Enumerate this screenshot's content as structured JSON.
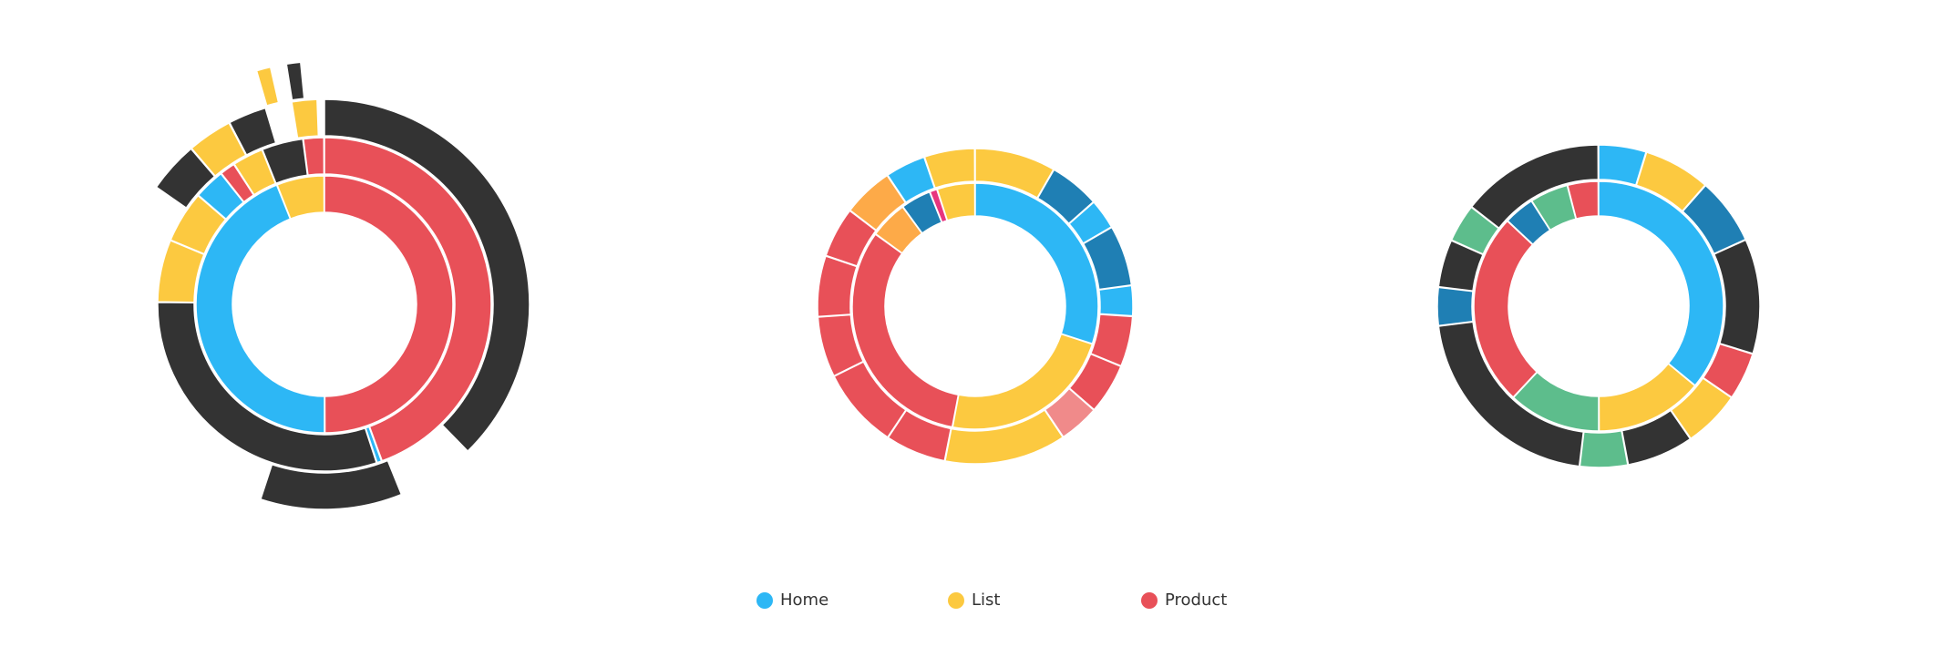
{
  "colors": {
    "Home": "#2db7f5",
    "Home2": "#1f7fb4",
    "List": "#fcc940",
    "List2": "#fdaa48",
    "Product": "#e85058",
    "Product2": "#f08a8a",
    "Exit": "#333333",
    "Other": "#5dbd8c",
    "Pink": "#e8357e"
  },
  "legend": [
    {
      "name": "Home",
      "color": "#2db7f5"
    },
    {
      "name": "List",
      "color": "#fcc940"
    },
    {
      "name": "Product",
      "color": "#e85058"
    }
  ],
  "chart_data": [
    {
      "type": "sunburst",
      "rings": [
        [
          {
            "c": "Product",
            "v": 0.5
          },
          {
            "c": "Home",
            "v": 0.44
          },
          {
            "c": "List",
            "v": 0.06,
            "gap": 0.0
          }
        ],
        [
          {
            "c": "Product",
            "v": 0.44
          },
          {
            "c": "Home",
            "v": 0.005
          },
          {
            "c": "Exit",
            "v": 0.3
          },
          {
            "c": "List",
            "v": 0.06
          },
          {
            "c": "List",
            "v": 0.05
          },
          {
            "c": "Home",
            "v": 0.03
          },
          {
            "c": "Product",
            "v": 0.015
          },
          {
            "c": "List",
            "v": 0.03
          },
          {
            "c": "Exit",
            "v": 0.04
          },
          {
            "c": "Product",
            "v": 0.02
          }
        ],
        [
          {
            "c": "Exit",
            "v": 0.37
          },
          {
            "c": "none",
            "v": 0.06
          },
          {
            "c": "Exit",
            "v": 0.11
          },
          {
            "c": "none",
            "v": 0.29
          },
          {
            "c": "Exit",
            "v": 0.04
          },
          {
            "c": "List",
            "v": 0.035
          },
          {
            "c": "Exit",
            "v": 0.03
          },
          {
            "c": "none",
            "v": 0.02
          },
          {
            "c": "List",
            "v": 0.02
          },
          {
            "c": "none",
            "v": 0.005
          }
        ],
        [
          {
            "c": "none",
            "v": 0.955
          },
          {
            "c": "List",
            "v": 0.01
          },
          {
            "c": "none",
            "v": 0.01
          },
          {
            "c": "Exit",
            "v": 0.01
          },
          {
            "c": "none",
            "v": 0.015
          }
        ]
      ]
    },
    {
      "type": "sunburst",
      "rings": [
        [
          {
            "c": "Home",
            "v": 0.3
          },
          {
            "c": "List",
            "v": 0.23
          },
          {
            "c": "Product",
            "v": 0.32
          },
          {
            "c": "List2",
            "v": 0.05
          },
          {
            "c": "Home2",
            "v": 0.04
          },
          {
            "c": "Pink",
            "v": 0.01
          },
          {
            "c": "List",
            "v": 0.05
          }
        ],
        [
          {
            "c": "List",
            "v": 0.08
          },
          {
            "c": "Home2",
            "v": 0.05
          },
          {
            "c": "Home",
            "v": 0.03
          },
          {
            "c": "Home2",
            "v": 0.06
          },
          {
            "c": "Home",
            "v": 0.03
          },
          {
            "c": "Product",
            "v": 0.05
          },
          {
            "c": "Product",
            "v": 0.05
          },
          {
            "c": "Product2",
            "v": 0.04
          },
          {
            "c": "List",
            "v": 0.12
          },
          {
            "c": "Product",
            "v": 0.06
          },
          {
            "c": "Product",
            "v": 0.08
          },
          {
            "c": "Product",
            "v": 0.06
          },
          {
            "c": "Product",
            "v": 0.06
          },
          {
            "c": "Product",
            "v": 0.05
          },
          {
            "c": "List2",
            "v": 0.05
          },
          {
            "c": "Home",
            "v": 0.04
          },
          {
            "c": "List",
            "v": 0.05
          }
        ]
      ]
    },
    {
      "type": "sunburst",
      "rings": [
        [
          {
            "c": "Home",
            "v": 0.36
          },
          {
            "c": "List",
            "v": 0.14
          },
          {
            "c": "Other",
            "v": 0.12
          },
          {
            "c": "Product",
            "v": 0.25
          },
          {
            "c": "Home2",
            "v": 0.04
          },
          {
            "c": "Other",
            "v": 0.05
          },
          {
            "c": "Product",
            "v": 0.04
          }
        ],
        [
          {
            "c": "Home",
            "v": 0.05
          },
          {
            "c": "List",
            "v": 0.07
          },
          {
            "c": "Home2",
            "v": 0.07
          },
          {
            "c": "Exit",
            "v": 0.12
          },
          {
            "c": "Product",
            "v": 0.05
          },
          {
            "c": "List",
            "v": 0.06
          },
          {
            "c": "Exit",
            "v": 0.07
          },
          {
            "c": "Other",
            "v": 0.05
          },
          {
            "c": "Exit",
            "v": 0.22
          },
          {
            "c": "Home2",
            "v": 0.04
          },
          {
            "c": "Exit",
            "v": 0.05
          },
          {
            "c": "Other",
            "v": 0.04
          },
          {
            "c": "Exit",
            "v": 0.15
          }
        ]
      ]
    }
  ]
}
